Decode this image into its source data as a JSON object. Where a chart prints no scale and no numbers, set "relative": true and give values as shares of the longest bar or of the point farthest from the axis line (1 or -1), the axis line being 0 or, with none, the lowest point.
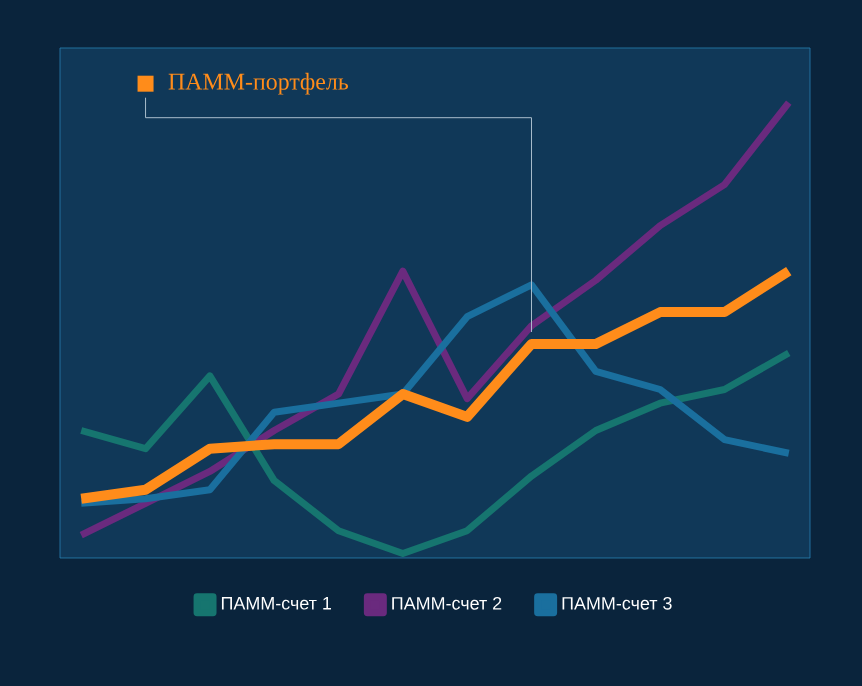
{
  "chart_data": {
    "type": "line",
    "relative": true,
    "legend": "bottom",
    "tick_labels": false,
    "categories": [
      null,
      null,
      null,
      null,
      null,
      null,
      null,
      null,
      null,
      null,
      null,
      null
    ],
    "series": [
      {
        "name": "ПАММ-счет 1",
        "color": "#16756f",
        "values": [
          0.28,
          0.24,
          0.4,
          0.17,
          0.06,
          0.01,
          0.06,
          0.18,
          0.28,
          0.34,
          0.37,
          0.45
        ]
      },
      {
        "name": "ПАММ-счет 2",
        "color": "#6a2a7e",
        "values": [
          0.05,
          0.12,
          0.19,
          0.28,
          0.36,
          0.63,
          0.35,
          0.51,
          0.61,
          0.73,
          0.82,
          1.0
        ]
      },
      {
        "name": "ПАММ-счет 3",
        "color": "#1a6f9e",
        "values": [
          0.12,
          0.13,
          0.15,
          0.32,
          0.34,
          0.36,
          0.53,
          0.6,
          0.41,
          0.37,
          0.26,
          0.23
        ]
      },
      {
        "name": "ПАММ-портфель",
        "color": "#ff8c1a",
        "values": [
          0.13,
          0.15,
          0.24,
          0.25,
          0.25,
          0.36,
          0.31,
          0.47,
          0.47,
          0.54,
          0.54,
          0.63
        ]
      }
    ]
  }
}
